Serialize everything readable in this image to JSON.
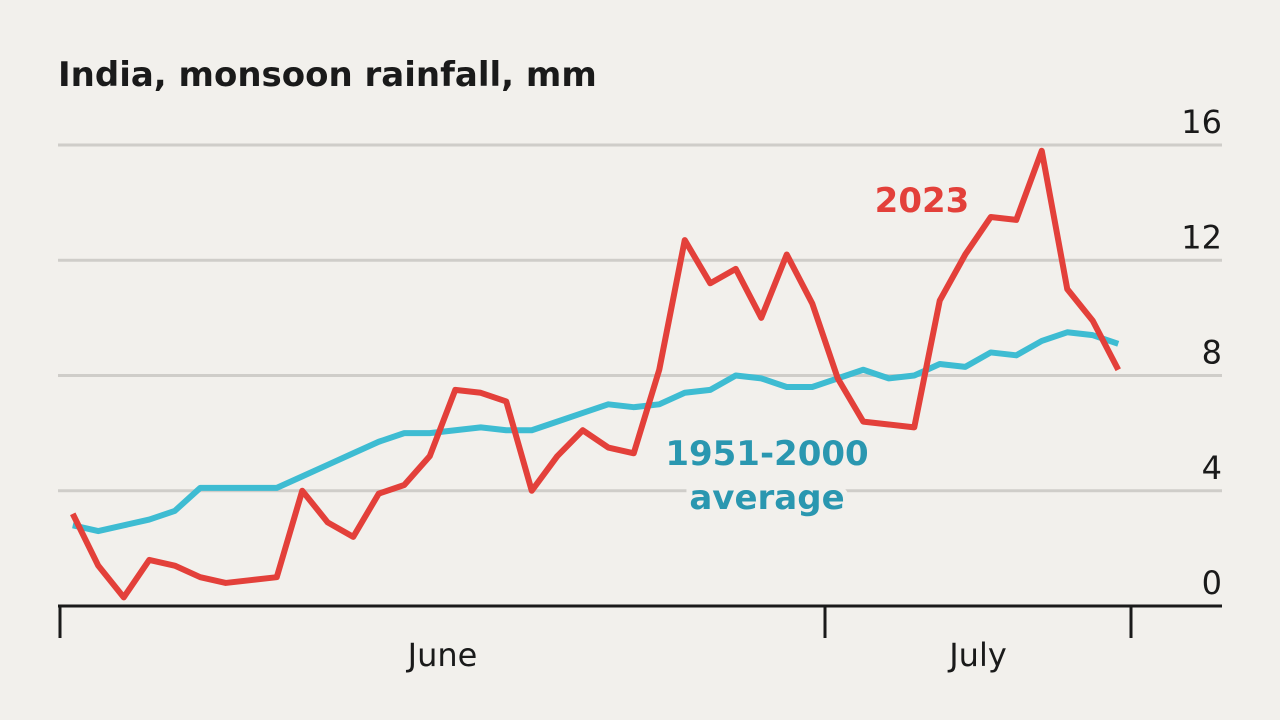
{
  "chart_data": {
    "type": "line",
    "title": "India, monsoon rainfall, mm",
    "x": [
      1,
      2,
      3,
      4,
      5,
      6,
      7,
      8,
      9,
      10,
      11,
      12,
      13,
      14,
      15,
      16,
      17,
      18,
      19,
      20,
      21,
      22,
      23,
      24,
      25,
      26,
      27,
      28,
      29,
      30,
      31,
      32,
      33,
      34,
      35,
      36,
      37,
      38,
      39,
      40,
      41,
      42
    ],
    "xlim": [
      0.5,
      42.5
    ],
    "xticks": [
      0.5,
      30.5,
      42.5
    ],
    "months": [
      "June",
      "July"
    ],
    "series": [
      {
        "name": "1951-2000 average",
        "color": "#3ebcd2",
        "label_color": "#2a97b0",
        "values": [
          2.8,
          2.6,
          2.8,
          3.0,
          3.3,
          4.1,
          4.1,
          4.1,
          4.1,
          4.5,
          4.9,
          5.3,
          5.7,
          6.0,
          6.0,
          6.1,
          6.2,
          6.1,
          6.1,
          6.4,
          6.7,
          7.0,
          6.9,
          7.0,
          7.4,
          7.5,
          8.0,
          7.9,
          7.6,
          7.6,
          7.9,
          8.2,
          7.9,
          8.0,
          8.4,
          8.3,
          8.8,
          8.7,
          9.2,
          9.5,
          9.4,
          9.1
        ]
      },
      {
        "name": "2023",
        "color": "#e3403a",
        "label_color": "#e3403a",
        "values": [
          3.2,
          1.4,
          0.3,
          1.6,
          1.4,
          1.0,
          0.8,
          0.9,
          1.0,
          4.0,
          2.9,
          2.4,
          3.9,
          4.2,
          5.2,
          7.5,
          7.4,
          7.1,
          4.0,
          5.2,
          6.1,
          5.5,
          5.3,
          8.2,
          12.7,
          11.2,
          11.7,
          10.0,
          12.2,
          10.5,
          7.9,
          6.4,
          6.3,
          6.2,
          10.6,
          12.2,
          13.5,
          13.4,
          15.8,
          11.0,
          9.9,
          8.2
        ]
      }
    ],
    "ylim": [
      0,
      16
    ],
    "yticks": [
      0,
      4,
      8,
      12,
      16
    ],
    "grid": true
  }
}
